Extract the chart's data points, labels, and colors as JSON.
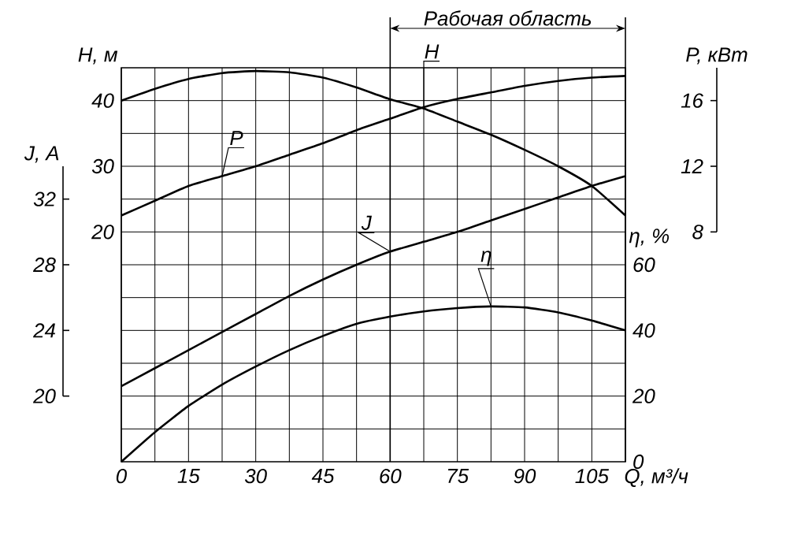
{
  "chart_data": [
    {
      "type": "line",
      "xlabel": "Q, м³/ч",
      "ylabel": "H, м",
      "y2label": "P, кВт",
      "y3label": "J, A",
      "x": [
        0,
        7.5,
        15,
        22.5,
        30,
        37.5,
        45,
        52.5,
        60,
        67.5,
        75,
        82.5,
        90,
        97.5,
        105,
        112.5
      ],
      "xlim": [
        0,
        112.5
      ],
      "xticks": [
        0,
        {
          "value": 7.5,
          "label": null
        },
        15,
        {
          "value": 22.5,
          "label": null
        },
        30,
        {
          "value": 37.5,
          "label": null
        },
        45,
        {
          "value": 52.5,
          "label": null
        },
        60,
        {
          "value": 67.5,
          "label": null
        },
        75,
        {
          "value": 82.5,
          "label": null
        },
        90,
        {
          "value": 97.5,
          "label": null
        },
        105
      ],
      "ylim": [
        -15,
        45
      ],
      "yticks": [
        {
          "value": -10,
          "label": null
        },
        {
          "value": -5,
          "label": null
        },
        {
          "value": 0,
          "label": null
        },
        {
          "value": 5,
          "label": null
        },
        {
          "value": 10,
          "label": null
        },
        {
          "value": 15,
          "label": null
        },
        20,
        {
          "value": 25,
          "label": null
        },
        30,
        {
          "value": 35,
          "label": null
        },
        40
      ],
      "y2lim": [
        8,
        18
      ],
      "y2ticks": [
        8,
        12,
        16
      ],
      "y3lim": [
        20,
        34
      ],
      "y3ticks": [
        20,
        24,
        28,
        32
      ],
      "grid": true,
      "legend": false,
      "marker": "none",
      "line_style": "solid",
      "ref_lines": [
        {
          "axis": "x",
          "value": 60,
          "color": "#000000"
        },
        {
          "axis": "x",
          "value": 112.5,
          "color": "#000000"
        }
      ],
      "annotations": [
        "Рабочая область"
      ],
      "series": [
        {
          "name": "H",
          "color": "#000000",
          "axis": "y",
          "values": [
            40,
            41.8,
            43.3,
            44.2,
            44.5,
            44.3,
            43.5,
            42,
            40.2,
            38.8,
            36.8,
            34.8,
            32.5,
            30,
            27,
            22.5
          ]
        },
        {
          "name": "P",
          "color": "#000000",
          "axis": "y2",
          "values": [
            9,
            9.9,
            10.8,
            11.4,
            12,
            12.7,
            13.4,
            14.2,
            14.9,
            15.6,
            16.1,
            16.5,
            16.9,
            17.2,
            17.4,
            17.5
          ]
        },
        {
          "name": "J",
          "color": "#000000",
          "axis": "y3",
          "values": [
            20.6,
            21.7,
            22.8,
            23.9,
            25,
            26.1,
            27.1,
            28,
            28.8,
            29.4,
            30,
            30.7,
            31.4,
            32.1,
            32.8,
            33.4
          ]
        }
      ]
    },
    {
      "type": "line",
      "ylabel": "η, %",
      "tick_labels": "y",
      "marker": "none",
      "line_style": "solid",
      "x": [
        0,
        7.5,
        15,
        22.5,
        30,
        37.5,
        45,
        52.5,
        60,
        67.5,
        75,
        82.5,
        90,
        97.5,
        105,
        112.5
      ],
      "xlim": [
        0,
        112.5
      ],
      "ylim": [
        0,
        120
      ],
      "yticks": [
        0,
        20,
        40,
        60
      ],
      "series": [
        {
          "name": "η",
          "color": "#000000",
          "values": [
            0,
            9,
            17,
            23.5,
            29,
            34,
            38.3,
            42,
            44.2,
            45.8,
            46.8,
            47.3,
            47,
            45.5,
            43,
            40
          ]
        }
      ]
    }
  ]
}
